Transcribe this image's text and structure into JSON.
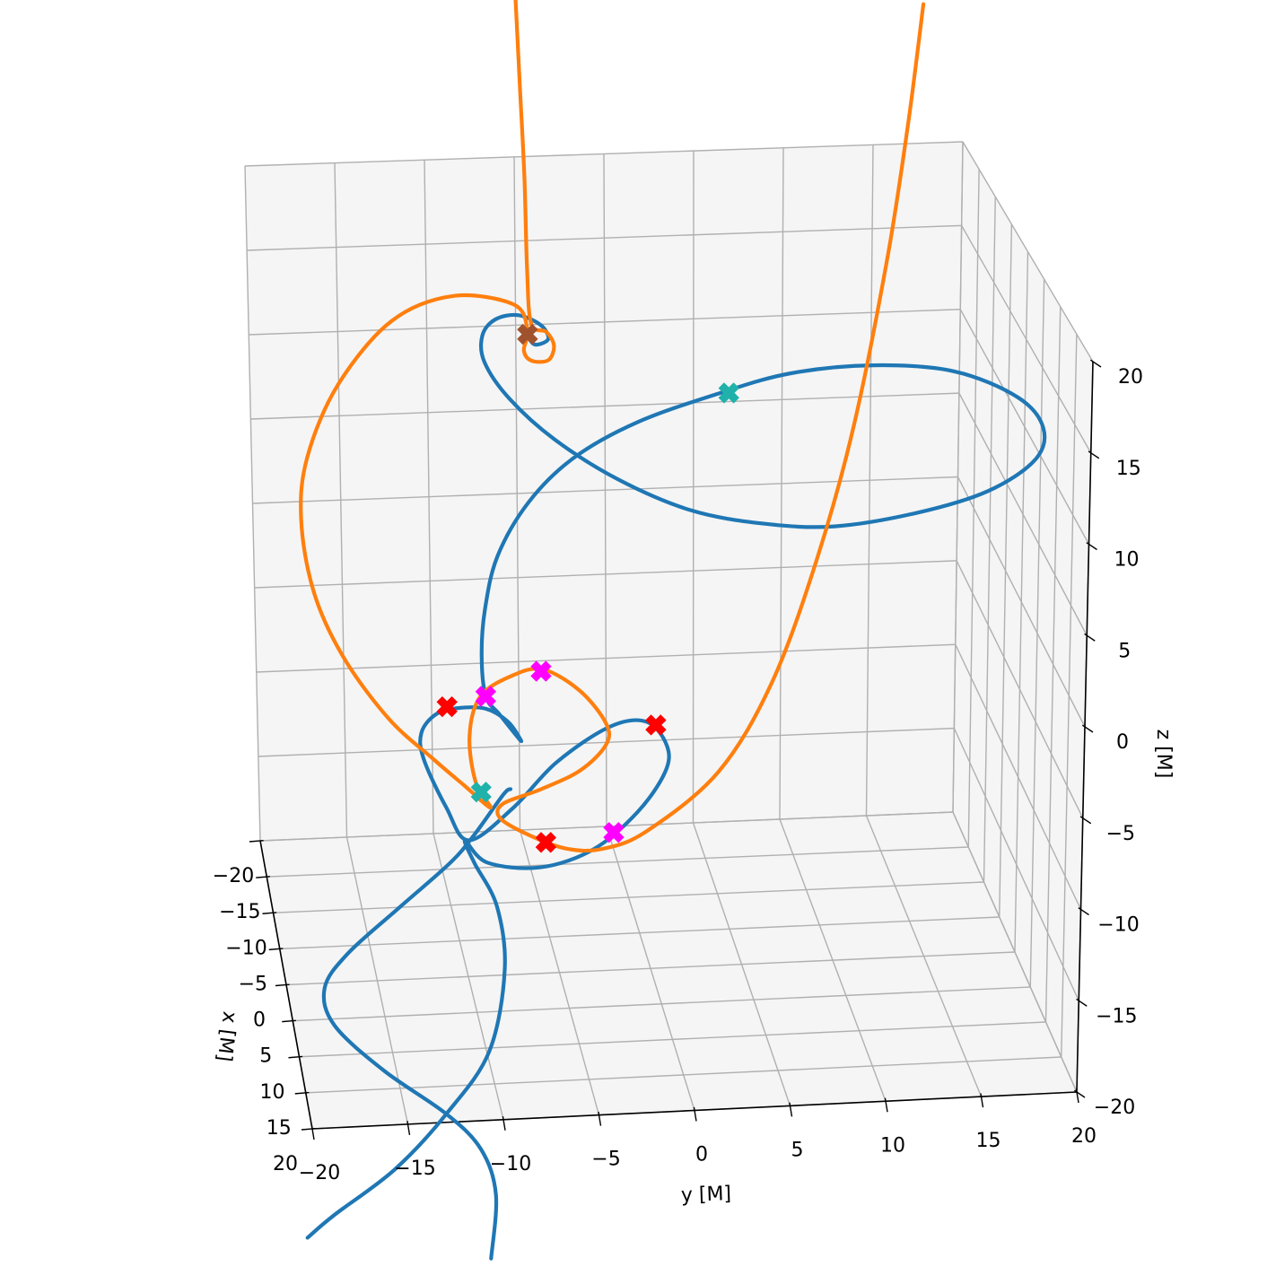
{
  "chart_data": {
    "type": "line3d",
    "xlabel": "x [M]",
    "ylabel": "y [M]",
    "zlabel": "z [M]",
    "xlim": [
      -20,
      20
    ],
    "ylim": [
      -20,
      20
    ],
    "zlim": [
      -20,
      20
    ],
    "xticks": [
      {
        "value": -20,
        "label": "−20"
      },
      {
        "value": -15,
        "label": "−15"
      },
      {
        "value": -10,
        "label": "−10"
      },
      {
        "value": -5,
        "label": "−5"
      },
      0,
      5,
      10,
      15,
      20
    ],
    "yticks": [
      {
        "value": -20,
        "label": "−20"
      },
      {
        "value": -15,
        "label": "−15"
      },
      {
        "value": -10,
        "label": "−10"
      },
      {
        "value": -5,
        "label": "−5"
      },
      0,
      5,
      10,
      15,
      20
    ],
    "zticks": [
      {
        "value": -20,
        "label": "−20"
      },
      {
        "value": -15,
        "label": "−15"
      },
      {
        "value": -10,
        "label": "−10"
      },
      {
        "value": -5,
        "label": "−5"
      },
      0,
      5,
      10,
      15,
      20
    ],
    "grid": true,
    "series": [
      {
        "mode": "line",
        "color": "#1f77b4",
        "x": [
          0,
          0,
          0,
          0,
          0,
          0,
          0,
          0,
          0,
          0,
          0,
          0,
          0,
          null,
          0,
          0,
          0,
          0,
          0,
          0,
          0,
          0,
          0,
          0,
          0,
          0,
          0,
          0,
          0,
          0,
          0,
          0,
          0,
          0,
          0,
          0,
          0,
          0,
          0,
          0,
          0,
          0,
          0,
          0,
          0,
          0,
          0,
          0,
          0,
          0,
          0,
          0,
          0,
          0,
          0,
          0,
          0,
          0,
          0,
          0,
          0,
          0,
          0,
          0,
          0,
          0,
          0,
          0,
          0,
          0,
          0,
          0,
          0,
          0
        ],
        "y": [
          -8.9,
          -8.6,
          -9.4,
          -11.3,
          -14.7,
          -17.4,
          -17.9,
          -16.6,
          -13.7,
          -10.9,
          -9.6,
          -8.0,
          -7.6,
          null,
          -19.1,
          -17.6,
          -14.2,
          -11.3,
          -8.9,
          -8.0,
          -8.4,
          -9.6,
          -10.1,
          -8.9,
          -6.0,
          -3.1,
          -0.7,
          0.8,
          0.9,
          -0.2,
          -2.2,
          -5.1,
          -7.5,
          -9.9,
          -11.1,
          -12.3,
          -12.4,
          -11.6,
          -10.4,
          -8.9,
          -7.7,
          -7.0,
          -7.4,
          -8.2,
          -8.9,
          -9.1,
          -8.9,
          -8.2,
          -6.5,
          -4.1,
          -0.7,
          3.7,
          7.5,
          11.9,
          16.2,
          19.6,
          21.0,
          20.6,
          18.1,
          14.3,
          9.9,
          6.1,
          2.2,
          -1.7,
          -5.1,
          -7.5,
          -8.8,
          -8.9,
          -8.2,
          -7.0,
          -5.8,
          -5.4,
          -6.1,
          -6.5
        ],
        "z": [
          -36.0,
          -32.4,
          -29.8,
          -27.7,
          -25.1,
          -22.4,
          -20.3,
          -18.4,
          -15.9,
          -13.5,
          -12.0,
          -9.8,
          -9.5,
          null,
          -34.3,
          -33.1,
          -30.7,
          -27.7,
          -24.3,
          -19.7,
          -16.1,
          -13.6,
          -12.3,
          -13.6,
          -14.0,
          -13.1,
          -11.1,
          -8.9,
          -7.4,
          -6.0,
          -6.2,
          -8.1,
          -10.6,
          -12.3,
          -10.4,
          -7.6,
          -6.1,
          -5.1,
          -4.8,
          -4.9,
          -5.7,
          -6.8,
          -6.3,
          -5.2,
          -4.2,
          -1.9,
          0.7,
          3.7,
          6.7,
          9.1,
          11.0,
          12.5,
          13.5,
          13.8,
          13.3,
          11.7,
          9.9,
          8.1,
          6.4,
          5.3,
          4.7,
          5.0,
          5.9,
          7.8,
          10.2,
          12.6,
          14.7,
          16.2,
          17.1,
          17.3,
          16.7,
          15.9,
          15.6,
          16.1
        ]
      },
      {
        "mode": "line",
        "color": "#ff7f0e",
        "x": [
          0,
          0,
          0,
          0,
          0,
          0,
          0,
          0,
          0,
          0,
          0,
          0,
          0,
          0,
          0,
          0,
          0,
          0,
          0,
          0,
          0,
          0,
          0,
          0,
          0,
          0,
          0,
          0,
          0,
          0,
          0,
          0,
          0,
          0,
          0,
          0,
          0,
          0,
          0,
          0,
          0,
          0,
          0,
          0,
          0,
          0
        ],
        "y": [
          -7.0,
          -6.8,
          -6.6,
          -6.5,
          -6.3,
          -5.5,
          -5.1,
          -5.4,
          -6.3,
          -6.7,
          -6.5,
          -7.2,
          -10.4,
          -13.7,
          -16.6,
          -18.3,
          -18.7,
          -18.1,
          -16.6,
          -14.2,
          -11.8,
          -10.1,
          -8.7,
          -9.5,
          -9.8,
          -9.2,
          -7.5,
          -5.8,
          -3.8,
          -2.4,
          -2.4,
          -3.8,
          -6.0,
          -8.0,
          -8.2,
          -6.7,
          -4.6,
          -2.6,
          -0.2,
          3.7,
          6.6,
          9.0,
          10.9,
          12.6,
          13.6,
          14.3
        ],
        "z": [
          35.2,
          30.1,
          25.0,
          19.9,
          16.8,
          16.3,
          15.5,
          14.7,
          14.7,
          15.3,
          16.4,
          17.9,
          18.5,
          17.2,
          13.7,
          9.7,
          6.2,
          2.1,
          -1.6,
          -5.2,
          -7.6,
          -9.2,
          -10.5,
          -9.0,
          -6.4,
          -4.2,
          -3.1,
          -2.8,
          -4.1,
          -6.0,
          -7.2,
          -8.6,
          -9.6,
          -10.3,
          -11.1,
          -12.1,
          -13.0,
          -13.1,
          -12.2,
          -9.0,
          -4.0,
          3.0,
          10.5,
          20.1,
          27.7,
          34.3
        ]
      },
      {
        "mode": "marker",
        "color": "#20b2aa",
        "x": [
          0,
          0
        ],
        "y": [
          4.2,
          -9.2
        ],
        "z": [
          12.5,
          -9.6
        ]
      },
      {
        "mode": "marker",
        "color": "#ff0000",
        "x": [
          0,
          0,
          0
        ],
        "y": [
          -11.0,
          0.3,
          -5.7
        ],
        "z": [
          -4.7,
          -6.2,
          -12.6
        ]
      },
      {
        "mode": "marker",
        "color": "#ff00ff",
        "x": [
          0,
          0,
          0
        ],
        "y": [
          -5.9,
          -8.9,
          -2.0
        ],
        "z": [
          -2.9,
          -4.2,
          -12.2
        ]
      },
      {
        "mode": "marker",
        "color": "#a0522d",
        "x": [
          0
        ],
        "y": [
          -6.5
        ],
        "z": [
          16.2
        ]
      }
    ]
  }
}
